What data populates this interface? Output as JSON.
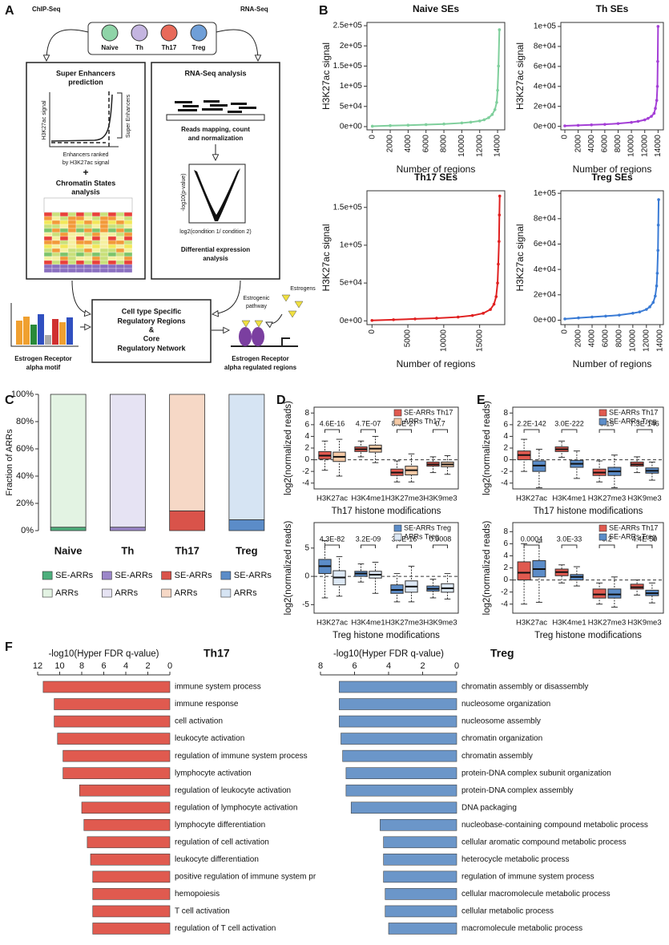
{
  "panel_labels": [
    "A",
    "B",
    "C",
    "D",
    "E",
    "F"
  ],
  "diagram": {
    "inputs": [
      "ChIP-Seq",
      "RNA-Seq"
    ],
    "cell_types": [
      "Naive",
      "Th",
      "Th17",
      "Treg"
    ],
    "se_box": {
      "title": [
        "Super Enhancers",
        "prediction"
      ],
      "y_label": "H3K27ac signal",
      "se_label": "Super Enhancers",
      "x_label": [
        "Enhancers ranked",
        "by H3K27ac signal"
      ],
      "plus": "+",
      "chromatin": [
        "Chromatin States",
        "analysis"
      ]
    },
    "rna_box": {
      "title": "RNA-Seq analysis",
      "mapping": [
        "Reads mapping, count",
        "and normalization"
      ],
      "y_label": "-log10(p-value)",
      "x_label": "log2(condition 1/ condition 2)",
      "de": [
        "Differential expression",
        "analysis"
      ]
    },
    "core": [
      "Cell type Specific",
      "Regulatory Regions",
      "&",
      "Core",
      "Regulatory Network"
    ],
    "motif": [
      "Estrogen Receptor",
      "alpha motif"
    ],
    "er": {
      "pathway": [
        "Estrogenic",
        "pathway"
      ],
      "ligand": "Estrogens",
      "label": [
        "Estrogen Receptor",
        "alpha regulated regions"
      ]
    }
  },
  "chart_data": [
    {
      "type": "line",
      "title": "Naive SEs",
      "xlabel": "Number of regions",
      "ylabel": "H3K27ac  signal",
      "color": "#7fcf9c",
      "x": [
        0,
        2000,
        4000,
        6000,
        8000,
        10000,
        11000,
        12000,
        12500,
        13000,
        13400,
        13700,
        13900,
        14000,
        14100,
        14200
      ],
      "values": [
        1000,
        2500,
        3500,
        5000,
        6500,
        9000,
        11000,
        14000,
        17000,
        22000,
        30000,
        42000,
        60000,
        90000,
        150000,
        240000
      ],
      "xlim": [
        -600,
        14800
      ],
      "ylim": [
        -8000,
        258000
      ],
      "xticks": [
        0,
        2000,
        4000,
        6000,
        8000,
        10000,
        12000,
        14000
      ],
      "yticks": [
        {
          "value": 0,
          "label": "0e+00"
        },
        {
          "value": 50000,
          "label": "5e+04"
        },
        {
          "value": 100000,
          "label": "1e+05"
        },
        {
          "value": 150000,
          "label": "1.5e+05"
        },
        {
          "value": 200000,
          "label": "2e+05"
        },
        {
          "value": 250000,
          "label": "2.5e+05"
        }
      ]
    },
    {
      "type": "line",
      "title": "Th SEs",
      "xlabel": "Number of regions",
      "ylabel": "H3K27ac  signal",
      "color": "#a43fd6",
      "x": [
        0,
        2000,
        4000,
        6000,
        8000,
        10000,
        11000,
        12000,
        12500,
        13000,
        13400,
        13600,
        13800,
        13900,
        13950,
        14000
      ],
      "values": [
        500,
        1000,
        1500,
        2000,
        2800,
        4000,
        5000,
        6500,
        8000,
        10000,
        13000,
        18000,
        26000,
        40000,
        65000,
        100000
      ],
      "xlim": [
        -600,
        14800
      ],
      "ylim": [
        -3500,
        104000
      ],
      "xticks": [
        0,
        2000,
        4000,
        6000,
        8000,
        10000,
        12000,
        14000
      ],
      "yticks": [
        {
          "value": 0,
          "label": "0e+00"
        },
        {
          "value": 20000,
          "label": "2e+04"
        },
        {
          "value": 40000,
          "label": "4e+04"
        },
        {
          "value": 60000,
          "label": "6e+04"
        },
        {
          "value": 80000,
          "label": "8e+04"
        },
        {
          "value": 100000,
          "label": "1e+05"
        }
      ]
    },
    {
      "type": "line",
      "title": "Th17 SEs",
      "xlabel": "Number of regions",
      "ylabel": "H3K27ac  signal",
      "color": "#e02020",
      "x": [
        0,
        3000,
        6000,
        9000,
        12000,
        14000,
        15500,
        16500,
        17000,
        17300,
        17500,
        17600,
        17700,
        17750,
        17800
      ],
      "values": [
        500,
        1500,
        2500,
        3500,
        5000,
        7000,
        10000,
        15000,
        22000,
        32000,
        50000,
        75000,
        105000,
        140000,
        165000
      ],
      "xlim": [
        -700,
        18500
      ],
      "ylim": [
        -5000,
        172000
      ],
      "xticks": [
        0,
        5000,
        10000,
        15000
      ],
      "yticks": [
        {
          "value": 0,
          "label": "0e+00"
        },
        {
          "value": 50000,
          "label": "5e+04"
        },
        {
          "value": 100000,
          "label": "1e+05"
        },
        {
          "value": 150000,
          "label": "1.5e+05"
        }
      ]
    },
    {
      "type": "line",
      "title": "Treg SEs",
      "xlabel": "Number of regions",
      "ylabel": "H3K27ac  signal",
      "color": "#3a7bd5",
      "x": [
        0,
        2000,
        4000,
        6000,
        8000,
        10000,
        11000,
        12000,
        12500,
        13000,
        13300,
        13500,
        13600,
        13700,
        13750,
        13800
      ],
      "values": [
        1000,
        1800,
        2500,
        3200,
        4000,
        5500,
        6500,
        8500,
        10500,
        14000,
        19000,
        27000,
        37000,
        55000,
        75000,
        95000
      ],
      "xlim": [
        -600,
        14500
      ],
      "ylim": [
        -3500,
        102000
      ],
      "xticks": [
        0,
        2000,
        4000,
        6000,
        8000,
        10000,
        12000,
        14000
      ],
      "yticks": [
        {
          "value": 0,
          "label": "0e+00"
        },
        {
          "value": 20000,
          "label": "2e+04"
        },
        {
          "value": 40000,
          "label": "4e+04"
        },
        {
          "value": 60000,
          "label": "6e+04"
        },
        {
          "value": 80000,
          "label": "8e+04"
        },
        {
          "value": 100000,
          "label": "1e+05"
        }
      ]
    },
    {
      "type": "stacked_bar",
      "ylabel": "Fraction of ARRs",
      "categories": [
        "Naive",
        "Th",
        "Th17",
        "Treg"
      ],
      "series": [
        {
          "name": "SE-ARRs",
          "colors": [
            "#4daf7c",
            "#9b86c9",
            "#d9534a",
            "#5b8cc8"
          ],
          "values": [
            2.5,
            2.5,
            14.5,
            8
          ]
        },
        {
          "name": "ARRs",
          "colors": [
            "#e3f3e3",
            "#e6e3f3",
            "#f6d8c6",
            "#d6e4f3"
          ],
          "values": [
            97.5,
            97.5,
            85.5,
            92
          ]
        }
      ],
      "ylim": [
        0,
        100
      ],
      "yticks": [
        {
          "value": 0,
          "label": "0%"
        },
        {
          "value": 20,
          "label": "20%"
        },
        {
          "value": 40,
          "label": "40%"
        },
        {
          "value": 60,
          "label": "60%"
        },
        {
          "value": 80,
          "label": "80%"
        },
        {
          "value": 100,
          "label": "100%"
        }
      ]
    },
    {
      "type": "box",
      "xlabel": "Th17 histone modifications",
      "ylabel": "log2(normalized reads)",
      "categories": [
        "H3K27ac",
        "H3K4me1",
        "H3K27me3",
        "H3K9me3"
      ],
      "pvalues": [
        "4.6E-16",
        "4.7E-07",
        "8.6E-27",
        "0.7"
      ],
      "ylim": [
        -5,
        9
      ],
      "yticks": [
        -4,
        -2,
        0,
        2,
        4,
        6,
        8
      ],
      "series": [
        {
          "name": "SE-ARRs Th17",
          "color": "#e0594f",
          "values": [
            {
              "whislo": -1.8,
              "q1": 0.1,
              "med": 0.7,
              "q3": 1.4,
              "whishi": 3.2
            },
            {
              "whislo": 0.5,
              "q1": 1.4,
              "med": 1.8,
              "q3": 2.2,
              "whishi": 3.2
            },
            {
              "whislo": -3.8,
              "q1": -2.7,
              "med": -2.2,
              "q3": -1.6,
              "whishi": -0.2
            },
            {
              "whislo": -2.2,
              "q1": -1.1,
              "med": -0.8,
              "q3": -0.4,
              "whishi": 0.5
            }
          ]
        },
        {
          "name": "ARRs Th17",
          "color": "#f5c9a5",
          "values": [
            {
              "whislo": -2.8,
              "q1": -0.3,
              "med": 0.5,
              "q3": 1.3,
              "whishi": 3.5
            },
            {
              "whislo": -0.5,
              "q1": 1.3,
              "med": 1.9,
              "q3": 2.5,
              "whishi": 4.0
            },
            {
              "whislo": -3.8,
              "q1": -2.6,
              "med": -1.8,
              "q3": -1.1,
              "whishi": 1.0
            },
            {
              "whislo": -2.5,
              "q1": -1.2,
              "med": -0.8,
              "q3": -0.4,
              "whishi": 0.7
            }
          ]
        }
      ]
    },
    {
      "type": "box",
      "xlabel": "Treg histone modifications",
      "ylabel": "log2(normalized reads)",
      "categories": [
        "H3K27ac",
        "H3K4me1",
        "H3K27me3",
        "H3K9me3"
      ],
      "pvalues": [
        "4.3E-82",
        "3.2E-09",
        "3.0E-16",
        "0.0008"
      ],
      "ylim": [
        -6.5,
        9.5
      ],
      "yticks": [
        -5,
        0,
        5
      ],
      "series": [
        {
          "name": "SE-ARRs Treg",
          "color": "#5b8cc8",
          "values": [
            {
              "whislo": -3.8,
              "q1": 0.5,
              "med": 1.8,
              "q3": 3.0,
              "whishi": 6.3
            },
            {
              "whislo": -1.0,
              "q1": 0.0,
              "med": 0.5,
              "q3": 0.9,
              "whishi": 2.2
            },
            {
              "whislo": -4.5,
              "q1": -3.0,
              "med": -2.4,
              "q3": -1.5,
              "whishi": 0.5
            },
            {
              "whislo": -3.8,
              "q1": -2.6,
              "med": -2.2,
              "q3": -1.7,
              "whishi": -0.5
            }
          ]
        },
        {
          "name": "ARRs Treg",
          "color": "#dde8f5",
          "values": [
            {
              "whislo": -3.5,
              "q1": -1.5,
              "med": -0.2,
              "q3": 1.0,
              "whishi": 3.5
            },
            {
              "whislo": -3.0,
              "q1": -0.3,
              "med": 0.3,
              "q3": 0.9,
              "whishi": 2.5
            },
            {
              "whislo": -4.5,
              "q1": -2.8,
              "med": -1.8,
              "q3": -0.8,
              "whishi": 1.8
            },
            {
              "whislo": -4.0,
              "q1": -2.8,
              "med": -2.1,
              "q3": -1.3,
              "whishi": 0.5
            }
          ]
        }
      ]
    },
    {
      "type": "box",
      "xlabel": "Th17 histone modifications",
      "ylabel": "log2(normalized reads)",
      "categories": [
        "H3K27ac",
        "H3K4me1",
        "H3K27me3",
        "H3K9me3"
      ],
      "pvalues": [
        "2.2E-142",
        "3.0E-222",
        "0.15",
        "7.3E-146"
      ],
      "ylim": [
        -5,
        9
      ],
      "yticks": [
        -4,
        -2,
        0,
        2,
        4,
        6,
        8
      ],
      "series": [
        {
          "name": "SE-ARRs Th17",
          "color": "#e0594f",
          "values": [
            {
              "whislo": -2.0,
              "q1": 0.0,
              "med": 0.8,
              "q3": 1.5,
              "whishi": 3.5
            },
            {
              "whislo": 0.4,
              "q1": 1.4,
              "med": 1.8,
              "q3": 2.2,
              "whishi": 3.2
            },
            {
              "whislo": -3.8,
              "q1": -2.7,
              "med": -2.2,
              "q3": -1.6,
              "whishi": -0.2
            },
            {
              "whislo": -2.2,
              "q1": -1.1,
              "med": -0.8,
              "q3": -0.4,
              "whishi": 0.5
            }
          ]
        },
        {
          "name": "SE-ARRs Treg",
          "color": "#5b8cc8",
          "values": [
            {
              "whislo": -4.8,
              "q1": -2.0,
              "med": -1.0,
              "q3": -0.2,
              "whishi": 1.8
            },
            {
              "whislo": -3.2,
              "q1": -1.3,
              "med": -0.7,
              "q3": -0.1,
              "whishi": 1.5
            },
            {
              "whislo": -4.8,
              "q1": -2.7,
              "med": -2.0,
              "q3": -1.3,
              "whishi": 0.8
            },
            {
              "whislo": -3.5,
              "q1": -2.3,
              "med": -1.9,
              "q3": -1.4,
              "whishi": -0.4
            }
          ]
        }
      ]
    },
    {
      "type": "box",
      "xlabel": "Treg histone modifications",
      "ylabel": "log2(normalized reads)",
      "categories": [
        "H3K27ac",
        "H3K4me1",
        "H3K27me3",
        "H3K9me3"
      ],
      "pvalues": [
        "0.0004",
        "3.0E-33",
        "0.2",
        "4.4E-50"
      ],
      "ylim": [
        -5.5,
        9.5
      ],
      "yticks": [
        -4,
        -2,
        0,
        2,
        4,
        6,
        8
      ],
      "series": [
        {
          "name": "SE-ARRs Th17",
          "color": "#e0594f",
          "values": [
            {
              "whislo": -4.0,
              "q1": 0.0,
              "med": 1.2,
              "q3": 3.0,
              "whishi": 6.0
            },
            {
              "whislo": -0.5,
              "q1": 0.7,
              "med": 1.3,
              "q3": 1.8,
              "whishi": 2.5
            },
            {
              "whislo": -4.0,
              "q1": -3.0,
              "med": -2.4,
              "q3": -1.5,
              "whishi": -0.5
            },
            {
              "whislo": -2.5,
              "q1": -1.5,
              "med": -1.2,
              "q3": -0.7,
              "whishi": 0.0
            }
          ]
        },
        {
          "name": "SE-ARRs Treg",
          "color": "#5b8cc8",
          "values": [
            {
              "whislo": -3.7,
              "q1": 0.5,
              "med": 1.8,
              "q3": 3.2,
              "whishi": 6.3
            },
            {
              "whislo": -1.0,
              "q1": 0.0,
              "med": 0.5,
              "q3": 0.9,
              "whishi": 2.2
            },
            {
              "whislo": -4.5,
              "q1": -3.0,
              "med": -2.4,
              "q3": -1.5,
              "whishi": 0.5
            },
            {
              "whislo": -3.8,
              "q1": -2.6,
              "med": -2.2,
              "q3": -1.7,
              "whishi": -0.5
            }
          ]
        }
      ]
    },
    {
      "type": "barh",
      "title": "Th17",
      "xlabel": "-log10(Hyper FDR q-value)",
      "color": "#e05a4f",
      "xlim": [
        12,
        0
      ],
      "xticks": [
        12,
        10,
        8,
        6,
        4,
        2,
        0
      ],
      "categories": [
        "immune system process",
        "immune response",
        "cell activation",
        "leukocyte activation",
        "regulation of immune system process",
        "lymphocyte activation",
        "regulation of leukocyte activation",
        "regulation of lymphocyte activation",
        "lymphocyte differentiation",
        "regulation of cell activation",
        "leukocyte differentiation",
        "positive regulation of immune system pr",
        "hemopoiesis",
        "T cell activation",
        "regulation of T cell activation"
      ],
      "values": [
        11.5,
        10.5,
        10.5,
        10.2,
        9.7,
        9.7,
        8.2,
        8.0,
        7.8,
        7.5,
        7.2,
        7.0,
        7.0,
        7.0,
        7.0
      ]
    },
    {
      "type": "barh",
      "title": "Treg",
      "xlabel": "-log10(Hyper FDR q-value)",
      "color": "#6b96c9",
      "xlim": [
        8,
        0
      ],
      "xticks": [
        8,
        6,
        4,
        2,
        0
      ],
      "categories": [
        "chromatin assembly or disassembly",
        "nucleosome organization",
        "nucleosome assembly",
        "chromatin organization",
        "chromatin assembly",
        "protein-DNA complex subunit organization",
        "protein-DNA complex assembly",
        "DNA packaging",
        "nucleobase-containing compound metabolic process",
        "cellular aromatic compound metabolic process",
        "heterocycle metabolic process",
        "regulation of immune system process",
        "cellular macromolecule metabolic process",
        "cellular metabolic process",
        "macromolecule metabolic process"
      ],
      "values": [
        6.9,
        6.9,
        6.9,
        6.8,
        6.7,
        6.5,
        6.5,
        6.2,
        4.5,
        4.3,
        4.3,
        4.3,
        4.2,
        4.2,
        4.0
      ]
    }
  ]
}
